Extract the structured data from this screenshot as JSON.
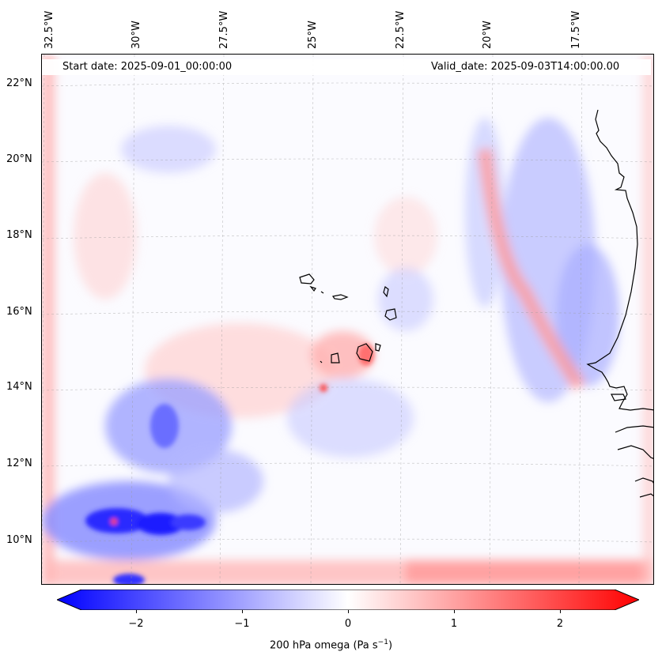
{
  "map": {
    "header": {
      "start_date": "Start date: 2025-09-01_00:00:00",
      "valid_date": "Valid_date: 2025-09-03T14:00:00.00"
    },
    "longitude_labels": [
      "32.5°W",
      "30°W",
      "27.5°W",
      "25°W",
      "22.5°W",
      "20°W",
      "17.5°W"
    ],
    "latitude_labels": [
      "22°N",
      "20°N",
      "18°N",
      "16°N",
      "14°N",
      "12°N",
      "10°N"
    ],
    "field": "200 hPa omega",
    "colorscale": {
      "min_color": "#0000ff",
      "mid_color": "#ffffff",
      "max_color": "#ff0000",
      "range": [
        -2.6,
        2.6
      ]
    }
  },
  "colorbar": {
    "ticks": [
      "−2",
      "−1",
      "0",
      "1",
      "2"
    ],
    "label": "200 hPa omega (Pa s",
    "label_sup": "−1",
    "label_end": ")"
  }
}
